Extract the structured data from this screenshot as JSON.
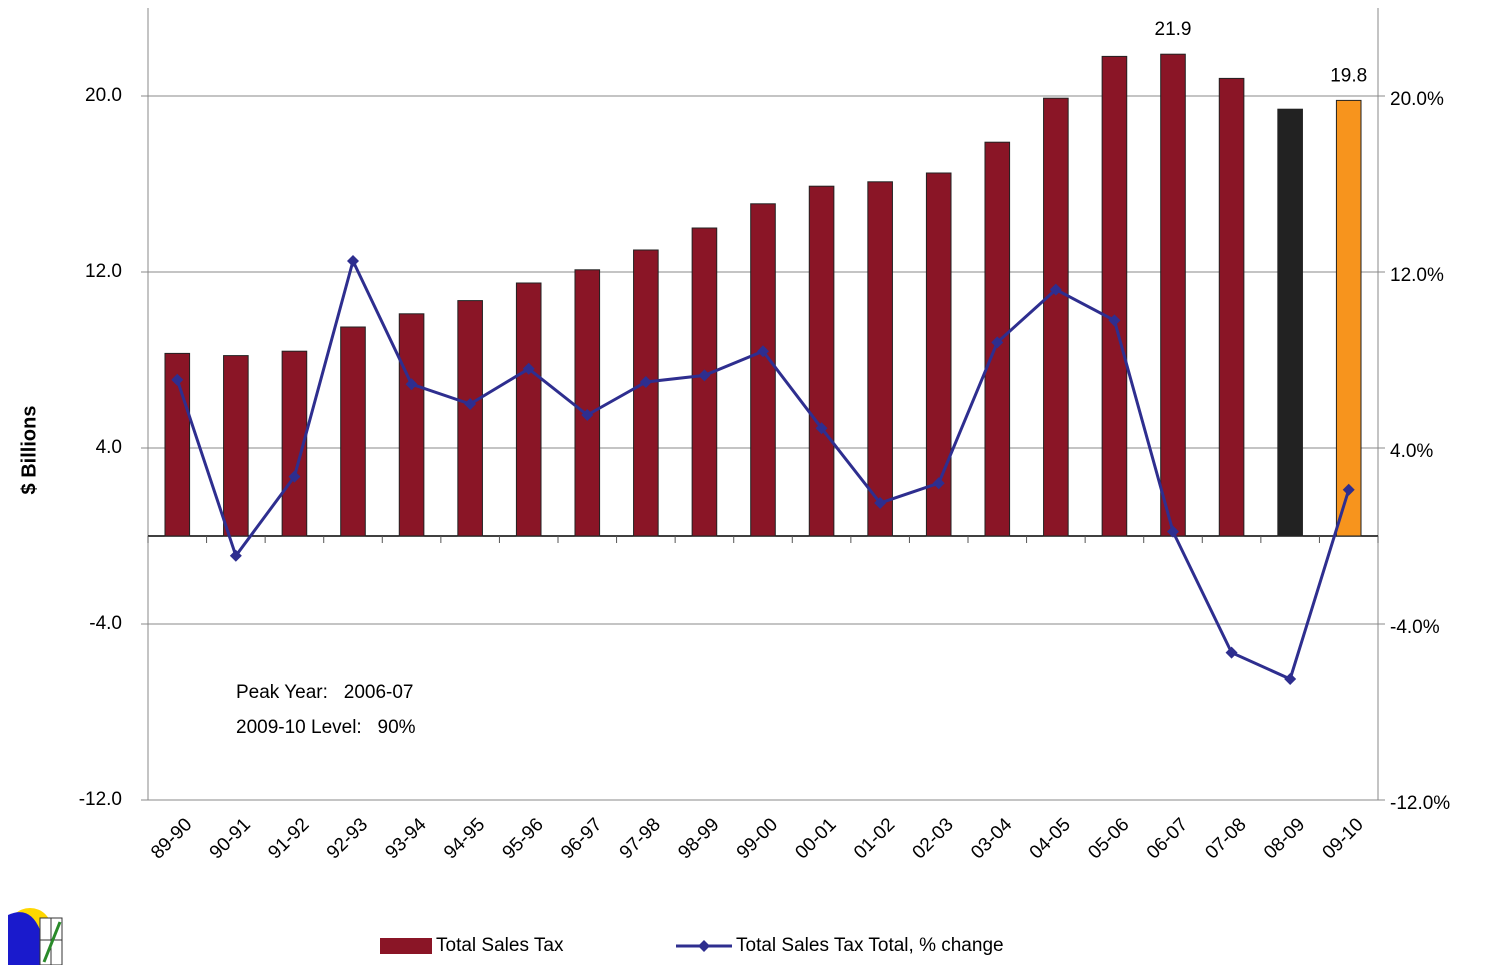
{
  "chart_data": {
    "type": "bar_line",
    "y_label": "$ Billions",
    "categories": [
      "89-90",
      "90-91",
      "91-92",
      "92-93",
      "93-94",
      "94-95",
      "95-96",
      "96-97",
      "97-98",
      "98-99",
      "99-00",
      "00-01",
      "01-02",
      "02-03",
      "03-04",
      "04-05",
      "05-06",
      "06-07",
      "07-08",
      "08-09",
      "09-10"
    ],
    "series": [
      {
        "name": "Total Sales Tax",
        "type": "bar",
        "colors": [
          "#8a1526",
          "#8a1526",
          "#8a1526",
          "#8a1526",
          "#8a1526",
          "#8a1526",
          "#8a1526",
          "#8a1526",
          "#8a1526",
          "#8a1526",
          "#8a1526",
          "#8a1526",
          "#8a1526",
          "#8a1526",
          "#8a1526",
          "#8a1526",
          "#8a1526",
          "#8a1526",
          "#8a1526",
          "#222222",
          "#f7941d"
        ],
        "values": [
          8.3,
          8.2,
          8.4,
          9.5,
          10.1,
          10.7,
          11.5,
          12.1,
          13.0,
          14.0,
          15.1,
          15.9,
          16.1,
          16.5,
          17.9,
          19.9,
          21.8,
          21.9,
          20.8,
          19.4,
          19.8
        ],
        "value_labels": [
          null,
          null,
          null,
          null,
          null,
          null,
          null,
          null,
          null,
          null,
          null,
          null,
          null,
          null,
          null,
          null,
          null,
          "21.9",
          null,
          null,
          "19.8"
        ]
      },
      {
        "name": "Total Sales Tax Total, % change",
        "type": "line",
        "axis": "y2",
        "color": "#2e2e8f",
        "values": [
          7.1,
          -0.9,
          2.7,
          12.5,
          6.9,
          6.0,
          7.6,
          5.5,
          7.0,
          7.3,
          8.4,
          4.9,
          1.5,
          2.4,
          8.8,
          11.2,
          9.8,
          0.2,
          -5.3,
          -6.5,
          2.1
        ]
      }
    ],
    "ylim": [
      -12,
      24
    ],
    "yticks": [
      {
        "value": -12,
        "label": "-12.0"
      },
      {
        "value": -4,
        "label": "-4.0"
      },
      {
        "value": 4,
        "label": "4.0"
      },
      {
        "value": 12,
        "label": "12.0"
      },
      {
        "value": 20,
        "label": "20.0"
      }
    ],
    "y2lim": [
      -12,
      24
    ],
    "y2ticks": [
      {
        "value": -12,
        "label": "-12.0%"
      },
      {
        "value": -4,
        "label": "-4.0%"
      },
      {
        "value": 4,
        "label": "4.0%"
      },
      {
        "value": 12,
        "label": "12.0%"
      },
      {
        "value": 20,
        "label": "20.0%"
      }
    ],
    "grid": true,
    "annotations": [
      "Peak Year:   2006-07",
      "2009-10 Level:   90%"
    ],
    "legend": "bottom"
  }
}
